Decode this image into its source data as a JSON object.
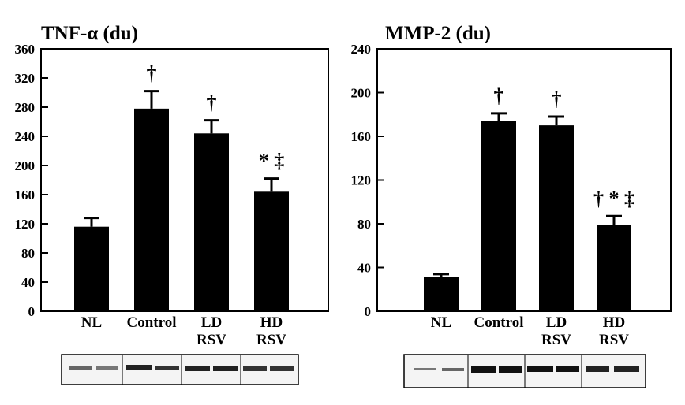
{
  "chart_data": [
    {
      "type": "bar",
      "title": "TNF-α (du)",
      "categories": [
        "NL",
        "Control",
        "LD\nRSV",
        "HD\nRSV"
      ],
      "values": [
        116,
        278,
        244,
        164
      ],
      "errors": [
        12,
        24,
        18,
        18
      ],
      "annotations": [
        null,
        "†",
        "†",
        "* ‡"
      ],
      "color": "#000000",
      "ylim": [
        0,
        360
      ],
      "yticks": [
        0,
        40,
        80,
        120,
        160,
        200,
        240,
        280,
        320,
        360
      ]
    },
    {
      "type": "bar",
      "title": "MMP-2 (du)",
      "categories": [
        "NL",
        "Control",
        "LD\nRSV",
        "HD\nRSV"
      ],
      "values": [
        31,
        174,
        170,
        79
      ],
      "errors": [
        3,
        7,
        8,
        8
      ],
      "annotations": [
        null,
        "†",
        "†",
        "† * ‡"
      ],
      "color": "#000000",
      "ylim": [
        0,
        240
      ],
      "yticks": [
        0,
        40,
        80,
        120,
        160,
        200,
        240
      ]
    }
  ]
}
